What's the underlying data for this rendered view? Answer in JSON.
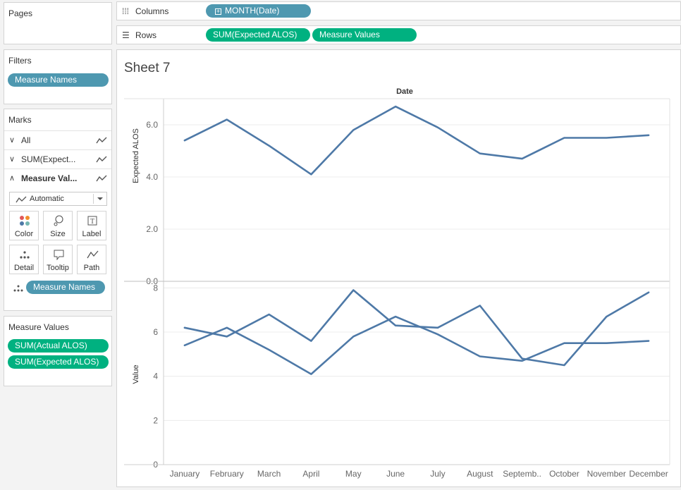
{
  "pages": {
    "title": "Pages"
  },
  "filters": {
    "title": "Filters",
    "pills": [
      "Measure Names"
    ]
  },
  "marks": {
    "title": "Marks",
    "rows": [
      {
        "label": "All",
        "expanded": false
      },
      {
        "label": "SUM(Expect...",
        "expanded": false
      },
      {
        "label": "Measure Val...",
        "expanded": true
      }
    ],
    "mark_type": "Automatic",
    "buttons": [
      "Color",
      "Size",
      "Label",
      "Detail",
      "Tooltip",
      "Path"
    ],
    "detail_pill": "Measure Names"
  },
  "measure_values": {
    "title": "Measure Values",
    "pills": [
      "SUM(Actual ALOS)",
      "SUM(Expected ALOS)"
    ]
  },
  "columns": {
    "title": "Columns",
    "pills": [
      "MONTH(Date)"
    ]
  },
  "rows_shelf": {
    "title": "Rows",
    "pills": [
      "SUM(Expected ALOS)",
      "Measure Values"
    ]
  },
  "sheet": {
    "title": "Sheet 7"
  },
  "colors": {
    "line": "#4e79a7",
    "pill_blue": "#4e98b0",
    "pill_green": "#00b180"
  },
  "chart_data": [
    {
      "type": "line",
      "title": "Date",
      "ylabel": "Expected ALOS",
      "ylim": [
        0,
        7
      ],
      "yticks": [
        "0.0",
        "2.0",
        "4.0",
        "6.0"
      ],
      "categories": [
        "January",
        "February",
        "March",
        "April",
        "May",
        "June",
        "July",
        "August",
        "Septemb..",
        "October",
        "November",
        "December"
      ],
      "series": [
        {
          "values": [
            5.4,
            6.2,
            5.2,
            4.1,
            5.8,
            6.7,
            5.9,
            4.9,
            4.7,
            5.5,
            5.5,
            5.6
          ]
        }
      ]
    },
    {
      "type": "line",
      "ylabel": "Value",
      "ylim": [
        0,
        8.3
      ],
      "yticks": [
        "0",
        "2",
        "4",
        "6",
        "8"
      ],
      "categories": [
        "January",
        "February",
        "March",
        "April",
        "May",
        "June",
        "July",
        "August",
        "Septemb..",
        "October",
        "November",
        "December"
      ],
      "series": [
        {
          "values": [
            6.2,
            5.8,
            6.8,
            5.6,
            7.9,
            6.3,
            6.2,
            7.2,
            4.8,
            4.5,
            6.7,
            7.8
          ]
        },
        {
          "values": [
            5.4,
            6.2,
            5.2,
            4.1,
            5.8,
            6.7,
            5.9,
            4.9,
            4.7,
            5.5,
            5.5,
            5.6
          ]
        }
      ]
    }
  ]
}
